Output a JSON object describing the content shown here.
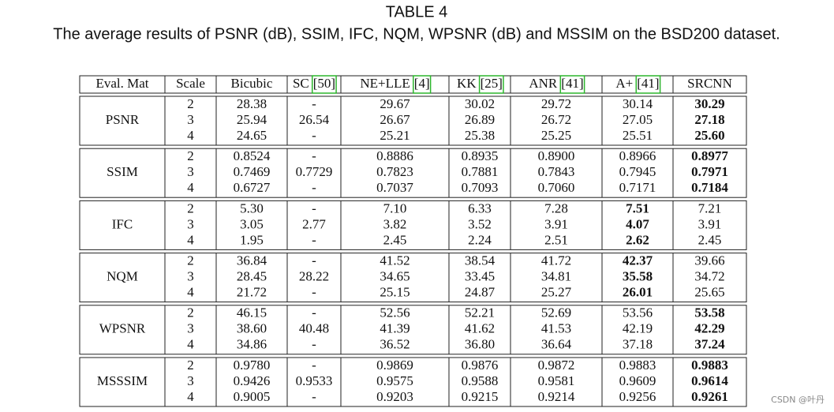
{
  "caption": {
    "title": "TABLE 4",
    "subtitle": "The average results of PSNR (dB), SSIM, IFC, NQM, WPSNR (dB) and MSSIM on the BSD200 dataset."
  },
  "table": {
    "header": [
      "Eval. Mat",
      "Scale",
      "Bicubic",
      {
        "name": "SC",
        "ref": "[50]"
      },
      {
        "name": "NE+LLE",
        "ref": "[4]"
      },
      {
        "name": "KK",
        "ref": "[25]"
      },
      {
        "name": "ANR",
        "ref": "[41]"
      },
      {
        "name": "A+",
        "ref": "[41]"
      },
      "SRCNN"
    ],
    "groups": [
      {
        "metric": "PSNR",
        "bold_column": 8,
        "rows": [
          [
            "2",
            "28.38",
            "-",
            "29.67",
            "30.02",
            "29.72",
            "30.14",
            "30.29"
          ],
          [
            "3",
            "25.94",
            "26.54",
            "26.67",
            "26.89",
            "26.72",
            "27.05",
            "27.18"
          ],
          [
            "4",
            "24.65",
            "-",
            "25.21",
            "25.38",
            "25.25",
            "25.51",
            "25.60"
          ]
        ]
      },
      {
        "metric": "SSIM",
        "bold_column": 8,
        "rows": [
          [
            "2",
            "0.8524",
            "-",
            "0.8886",
            "0.8935",
            "0.8900",
            "0.8966",
            "0.8977"
          ],
          [
            "3",
            "0.7469",
            "0.7729",
            "0.7823",
            "0.7881",
            "0.7843",
            "0.7945",
            "0.7971"
          ],
          [
            "4",
            "0.6727",
            "-",
            "0.7037",
            "0.7093",
            "0.7060",
            "0.7171",
            "0.7184"
          ]
        ]
      },
      {
        "metric": "IFC",
        "bold_column": 7,
        "rows": [
          [
            "2",
            "5.30",
            "-",
            "7.10",
            "6.33",
            "7.28",
            "7.51",
            "7.21"
          ],
          [
            "3",
            "3.05",
            "2.77",
            "3.82",
            "3.52",
            "3.91",
            "4.07",
            "3.91"
          ],
          [
            "4",
            "1.95",
            "-",
            "2.45",
            "2.24",
            "2.51",
            "2.62",
            "2.45"
          ]
        ]
      },
      {
        "metric": "NQM",
        "bold_column": 7,
        "rows": [
          [
            "2",
            "36.84",
            "-",
            "41.52",
            "38.54",
            "41.72",
            "42.37",
            "39.66"
          ],
          [
            "3",
            "28.45",
            "28.22",
            "34.65",
            "33.45",
            "34.81",
            "35.58",
            "34.72"
          ],
          [
            "4",
            "21.72",
            "-",
            "25.15",
            "24.87",
            "25.27",
            "26.01",
            "25.65"
          ]
        ]
      },
      {
        "metric": "WPSNR",
        "bold_column": 8,
        "rows": [
          [
            "2",
            "46.15",
            "-",
            "52.56",
            "52.21",
            "52.69",
            "53.56",
            "53.58"
          ],
          [
            "3",
            "38.60",
            "40.48",
            "41.39",
            "41.62",
            "41.53",
            "42.19",
            "42.29"
          ],
          [
            "4",
            "34.86",
            "-",
            "36.52",
            "36.80",
            "36.64",
            "37.18",
            "37.24"
          ]
        ]
      },
      {
        "metric": "MSSSIM",
        "bold_column": 8,
        "rows": [
          [
            "2",
            "0.9780",
            "-",
            "0.9869",
            "0.9876",
            "0.9872",
            "0.9883",
            "0.9883"
          ],
          [
            "3",
            "0.9426",
            "0.9533",
            "0.9575",
            "0.9588",
            "0.9581",
            "0.9609",
            "0.9614"
          ],
          [
            "4",
            "0.9005",
            "-",
            "0.9203",
            "0.9215",
            "0.9214",
            "0.9256",
            "0.9261"
          ]
        ]
      }
    ]
  },
  "watermark": "CSDN @叶丹"
}
